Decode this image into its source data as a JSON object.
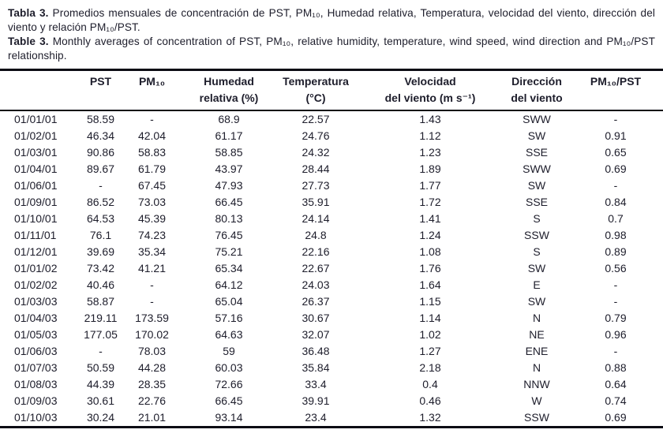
{
  "caption": {
    "es_label": "Tabla 3.",
    "es_text": "Promedios mensuales de concentración de PST, PM₁₀, Humedad relativa, Temperatura, velocidad del viento, dirección del viento y relación PM₁₀/PST.",
    "en_label": "Table 3.",
    "en_text": "Monthly averages of concentration of PST, PM₁₀, relative humidity, temperature, wind speed, wind direction and PM₁₀/PST relationship."
  },
  "table": {
    "headers": [
      {
        "line1": "",
        "line2": ""
      },
      {
        "line1": "PST",
        "line2": ""
      },
      {
        "line1": "PM₁₀",
        "line2": ""
      },
      {
        "line1": "Humedad",
        "line2": "relativa (%)"
      },
      {
        "line1": "Temperatura",
        "line2": "(°C)"
      },
      {
        "line1": "Velocidad",
        "line2": "del viento (m s⁻¹)"
      },
      {
        "line1": "Dirección",
        "line2": "del viento"
      },
      {
        "line1": "PM₁₀/PST",
        "line2": ""
      }
    ],
    "rows": [
      [
        "01/01/01",
        "58.59",
        "-",
        "68.9",
        "22.57",
        "1.43",
        "SWW",
        "-"
      ],
      [
        "01/02/01",
        "46.34",
        "42.04",
        "61.17",
        "24.76",
        "1.12",
        "SW",
        "0.91"
      ],
      [
        "01/03/01",
        "90.86",
        "58.83",
        "58.85",
        "24.32",
        "1.23",
        "SSE",
        "0.65"
      ],
      [
        "01/04/01",
        "89.67",
        "61.79",
        "43.97",
        "28.44",
        "1.89",
        "SWW",
        "0.69"
      ],
      [
        "01/06/01",
        "-",
        "67.45",
        "47.93",
        "27.73",
        "1.77",
        "SW",
        "-"
      ],
      [
        "01/09/01",
        "86.52",
        "73.03",
        "66.45",
        "35.91",
        "1.72",
        "SSE",
        "0.84"
      ],
      [
        "01/10/01",
        "64.53",
        "45.39",
        "80.13",
        "24.14",
        "1.41",
        "S",
        "0.7"
      ],
      [
        "01/11/01",
        "76.1",
        "74.23",
        "76.45",
        "24.8",
        "1.24",
        "SSW",
        "0.98"
      ],
      [
        "01/12/01",
        "39.69",
        "35.34",
        "75.21",
        "22.16",
        "1.08",
        "S",
        "0.89"
      ],
      [
        "01/01/02",
        "73.42",
        "41.21",
        "65.34",
        "22.67",
        "1.76",
        "SW",
        "0.56"
      ],
      [
        "01/02/02",
        "40.46",
        "-",
        "64.12",
        "24.03",
        "1.64",
        "E",
        "-"
      ],
      [
        "01/03/03",
        "58.87",
        "-",
        "65.04",
        "26.37",
        "1.15",
        "SW",
        "-"
      ],
      [
        "01/04/03",
        "219.11",
        "173.59",
        "57.16",
        "30.67",
        "1.14",
        "N",
        "0.79"
      ],
      [
        "01/05/03",
        "177.05",
        "170.02",
        "64.63",
        "32.07",
        "1.02",
        "NE",
        "0.96"
      ],
      [
        "01/06/03",
        "-",
        "78.03",
        "59",
        "36.48",
        "1.27",
        "ENE",
        "-"
      ],
      [
        "01/07/03",
        "50.59",
        "44.28",
        "60.03",
        "35.84",
        "2.18",
        "N",
        "0.88"
      ],
      [
        "01/08/03",
        "44.39",
        "28.35",
        "72.66",
        "33.4",
        "0.4",
        "NNW",
        "0.64"
      ],
      [
        "01/09/03",
        "30.61",
        "22.76",
        "66.45",
        "39.91",
        "0.46",
        "W",
        "0.74"
      ],
      [
        "01/10/03",
        "30.24",
        "21.01",
        "93.14",
        "23.4",
        "1.32",
        "SSW",
        "0.69"
      ]
    ]
  },
  "colors": {
    "background": "#ffffff",
    "text": "#1d1d2b",
    "rule": "#0b0b14"
  }
}
